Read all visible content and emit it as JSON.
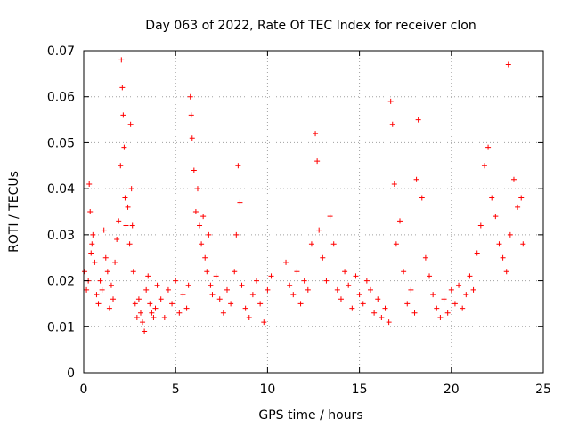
{
  "chart_data": {
    "type": "scatter",
    "title": "Day 063 of 2022, Rate Of TEC Index for receiver clon",
    "xlabel": "GPS time / hours",
    "ylabel": "ROTI / TECUs",
    "xlim": [
      0,
      25
    ],
    "ylim": [
      0,
      0.07
    ],
    "xticks": [
      "0",
      "5",
      "10",
      "15",
      "20",
      "25"
    ],
    "yticks": [
      "0",
      "0.01",
      "0.02",
      "0.03",
      "0.04",
      "0.05",
      "0.06",
      "0.07"
    ],
    "grid": true,
    "marker": "+",
    "color": "#ff0000",
    "series": [
      {
        "x": [
          0.05,
          0.15,
          0.25,
          0.3,
          0.35,
          0.4,
          0.45,
          0.5,
          0.6,
          0.7,
          0.8,
          0.9,
          1.0,
          1.1,
          1.2,
          1.3,
          1.4,
          1.5,
          1.6,
          1.7,
          1.8,
          1.9,
          2.0,
          2.05,
          2.1,
          2.15,
          2.2,
          2.25,
          2.3,
          2.4,
          2.5,
          2.55,
          2.6,
          2.65,
          2.7,
          2.8,
          2.9,
          3.0,
          3.1,
          3.2,
          3.3,
          3.4,
          3.5,
          3.6,
          3.7,
          3.8,
          3.9,
          4.0,
          4.2,
          4.4,
          4.6,
          4.8,
          5.0,
          5.2,
          5.4,
          5.6,
          5.7,
          5.8,
          5.85,
          5.9,
          6.0,
          6.1,
          6.2,
          6.3,
          6.4,
          6.5,
          6.6,
          6.7,
          6.8,
          6.9,
          7.0,
          7.2,
          7.4,
          7.6,
          7.8,
          8.0,
          8.2,
          8.3,
          8.4,
          8.5,
          8.6,
          8.8,
          9.0,
          9.2,
          9.4,
          9.6,
          9.8,
          10.0,
          10.2,
          11.0,
          11.2,
          11.4,
          11.6,
          11.8,
          12.0,
          12.2,
          12.4,
          12.6,
          12.7,
          12.8,
          13.0,
          13.2,
          13.4,
          13.6,
          13.8,
          14.0,
          14.2,
          14.4,
          14.6,
          14.8,
          15.0,
          15.2,
          15.4,
          15.6,
          15.8,
          16.0,
          16.2,
          16.4,
          16.6,
          16.7,
          16.8,
          16.9,
          17.0,
          17.2,
          17.4,
          17.6,
          17.8,
          18.0,
          18.1,
          18.2,
          18.4,
          18.6,
          18.8,
          19.0,
          19.2,
          19.4,
          19.6,
          19.8,
          20.0,
          20.2,
          20.4,
          20.6,
          20.8,
          21.0,
          21.2,
          21.4,
          21.6,
          21.8,
          22.0,
          22.2,
          22.4,
          22.6,
          22.8,
          23.0,
          23.1,
          23.2,
          23.4,
          23.6,
          23.8,
          23.9
        ],
        "y": [
          0.022,
          0.018,
          0.02,
          0.041,
          0.035,
          0.026,
          0.028,
          0.03,
          0.024,
          0.017,
          0.015,
          0.02,
          0.018,
          0.031,
          0.025,
          0.022,
          0.014,
          0.019,
          0.016,
          0.024,
          0.029,
          0.033,
          0.045,
          0.068,
          0.062,
          0.056,
          0.049,
          0.038,
          0.032,
          0.036,
          0.028,
          0.054,
          0.04,
          0.032,
          0.022,
          0.015,
          0.012,
          0.016,
          0.013,
          0.011,
          0.009,
          0.018,
          0.021,
          0.015,
          0.013,
          0.012,
          0.014,
          0.019,
          0.016,
          0.012,
          0.018,
          0.015,
          0.02,
          0.013,
          0.017,
          0.014,
          0.019,
          0.06,
          0.056,
          0.051,
          0.044,
          0.035,
          0.04,
          0.032,
          0.028,
          0.034,
          0.025,
          0.022,
          0.03,
          0.019,
          0.017,
          0.021,
          0.016,
          0.013,
          0.018,
          0.015,
          0.022,
          0.03,
          0.045,
          0.037,
          0.019,
          0.014,
          0.012,
          0.017,
          0.02,
          0.015,
          0.011,
          0.018,
          0.021,
          0.024,
          0.019,
          0.017,
          0.022,
          0.015,
          0.02,
          0.018,
          0.028,
          0.052,
          0.046,
          0.031,
          0.025,
          0.02,
          0.034,
          0.028,
          0.018,
          0.016,
          0.022,
          0.019,
          0.014,
          0.021,
          0.017,
          0.015,
          0.02,
          0.018,
          0.013,
          0.016,
          0.012,
          0.014,
          0.011,
          0.059,
          0.054,
          0.041,
          0.028,
          0.033,
          0.022,
          0.015,
          0.018,
          0.013,
          0.042,
          0.055,
          0.038,
          0.025,
          0.021,
          0.017,
          0.014,
          0.012,
          0.016,
          0.013,
          0.018,
          0.015,
          0.019,
          0.014,
          0.017,
          0.021,
          0.018,
          0.026,
          0.032,
          0.045,
          0.049,
          0.038,
          0.034,
          0.028,
          0.025,
          0.022,
          0.067,
          0.03,
          0.042,
          0.036,
          0.038,
          0.028
        ]
      }
    ]
  }
}
